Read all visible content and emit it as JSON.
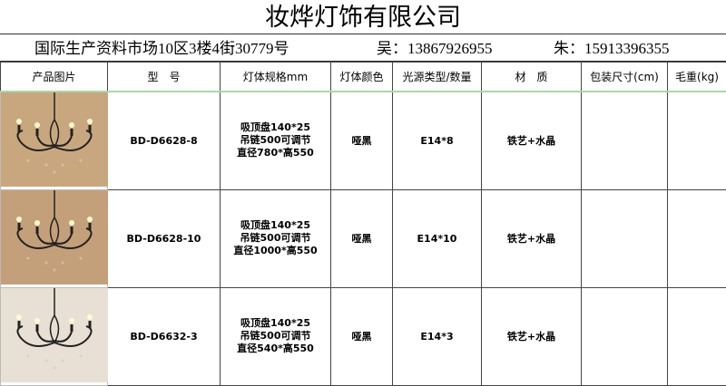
{
  "title": "妆烨灯饰有限公司",
  "address": "国际生产资料市场10区3楼4街30779号",
  "contact1": "吴：13867926955",
  "contact2": "朱：15913396355",
  "headers": [
    "产品图片",
    "型　号",
    "灯体规格mm",
    "灯体颜色",
    "光源类型/数量",
    "材　质",
    "包装尺寸(cm)",
    "毛重(kg)"
  ],
  "rows": [
    {
      "model": "BD-D6628-8",
      "spec": [
        "吸顶盘140*25",
        "吊链500可调节",
        "直径780*高550"
      ],
      "color": "哑黑",
      "light": "E14*8",
      "material": "铁艺+水晶",
      "package": "",
      "weight": ""
    },
    {
      "model": "BD-D6628-10",
      "spec": [
        "吸顶盘140*25",
        "吊链500可调节",
        "直径1000*高550"
      ],
      "color": "哑黑",
      "light": "E14*10",
      "material": "铁艺+水晶",
      "package": "",
      "weight": ""
    },
    {
      "model": "BD-D6632-3",
      "spec": [
        "吸顶盘140*25",
        "吊链500可调节",
        "直径540*高550"
      ],
      "color": "哑黑",
      "light": "E14*3",
      "material": "铁艺+水晶",
      "package": "",
      "weight": ""
    }
  ]
}
